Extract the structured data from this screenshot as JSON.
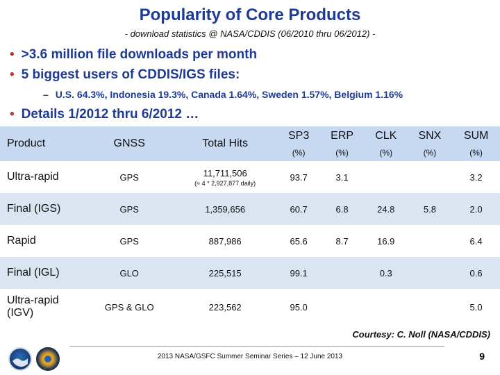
{
  "slide": {
    "title": "Popularity of Core Products",
    "subtitle": "- download statistics @ NASA/CDDIS   (06/2010 thru 06/2012) -"
  },
  "bullets": [
    ">3.6 million file downloads per month",
    "5 biggest users of CDDIS/IGS files:"
  ],
  "sub_bullet": "U.S. 64.3%,  Indonesia 19.3%, Canada 1.64%,  Sweden 1.57%, Belgium 1.16%",
  "details_bullet": "Details 1/2012 thru 6/2012 …",
  "table": {
    "headers": {
      "product": "Product",
      "gnss": "GNSS",
      "hits": "Total Hits",
      "sp3": "SP3",
      "erp": "ERP",
      "clk": "CLK",
      "snx": "SNX",
      "sum": "SUM",
      "unit": "(%)"
    },
    "rows": [
      {
        "product": "Ultra-rapid",
        "gnss": "GPS",
        "hits": "11,711,506",
        "hits_note": "(≈ 4  *  2,927,877 daily)",
        "sp3": "93.7",
        "erp": "3.1",
        "clk": "",
        "snx": "",
        "sum": "3.2"
      },
      {
        "product": "Final (IGS)",
        "gnss": "GPS",
        "hits": "1,359,656",
        "hits_note": "",
        "sp3": "60.7",
        "erp": "6.8",
        "clk": "24.8",
        "snx": "5.8",
        "sum": "2.0"
      },
      {
        "product": "Rapid",
        "gnss": "GPS",
        "hits": "887,986",
        "hits_note": "",
        "sp3": "65.6",
        "erp": "8.7",
        "clk": "16.9",
        "snx": "",
        "sum": "6.4"
      },
      {
        "product": "Final (IGL)",
        "gnss": "GLO",
        "hits": "225,515",
        "hits_note": "",
        "sp3": "99.1",
        "erp": "",
        "clk": "0.3",
        "snx": "",
        "sum": "0.6"
      },
      {
        "product": "Ultra-rapid (IGV)",
        "gnss": "GPS & GLO",
        "hits": "223,562",
        "hits_note": "",
        "sp3": "95.0",
        "erp": "",
        "clk": "",
        "snx": "",
        "sum": "5.0"
      }
    ]
  },
  "courtesy": "Courtesy: C. Noll (NASA/CDDIS)",
  "footer": "2013 NASA/GSFC Summer Seminar Series – 12 June 2013",
  "page_number": "9",
  "icons": {
    "noaa": "noaa-logo-icon",
    "nasa": "nasa-gsfc-logo-icon"
  },
  "colors": {
    "title": "#1f3a93",
    "bullet_dot": "#c0392b",
    "header_bg": "#c6d9f1",
    "stripe": "#dbe5f1"
  }
}
